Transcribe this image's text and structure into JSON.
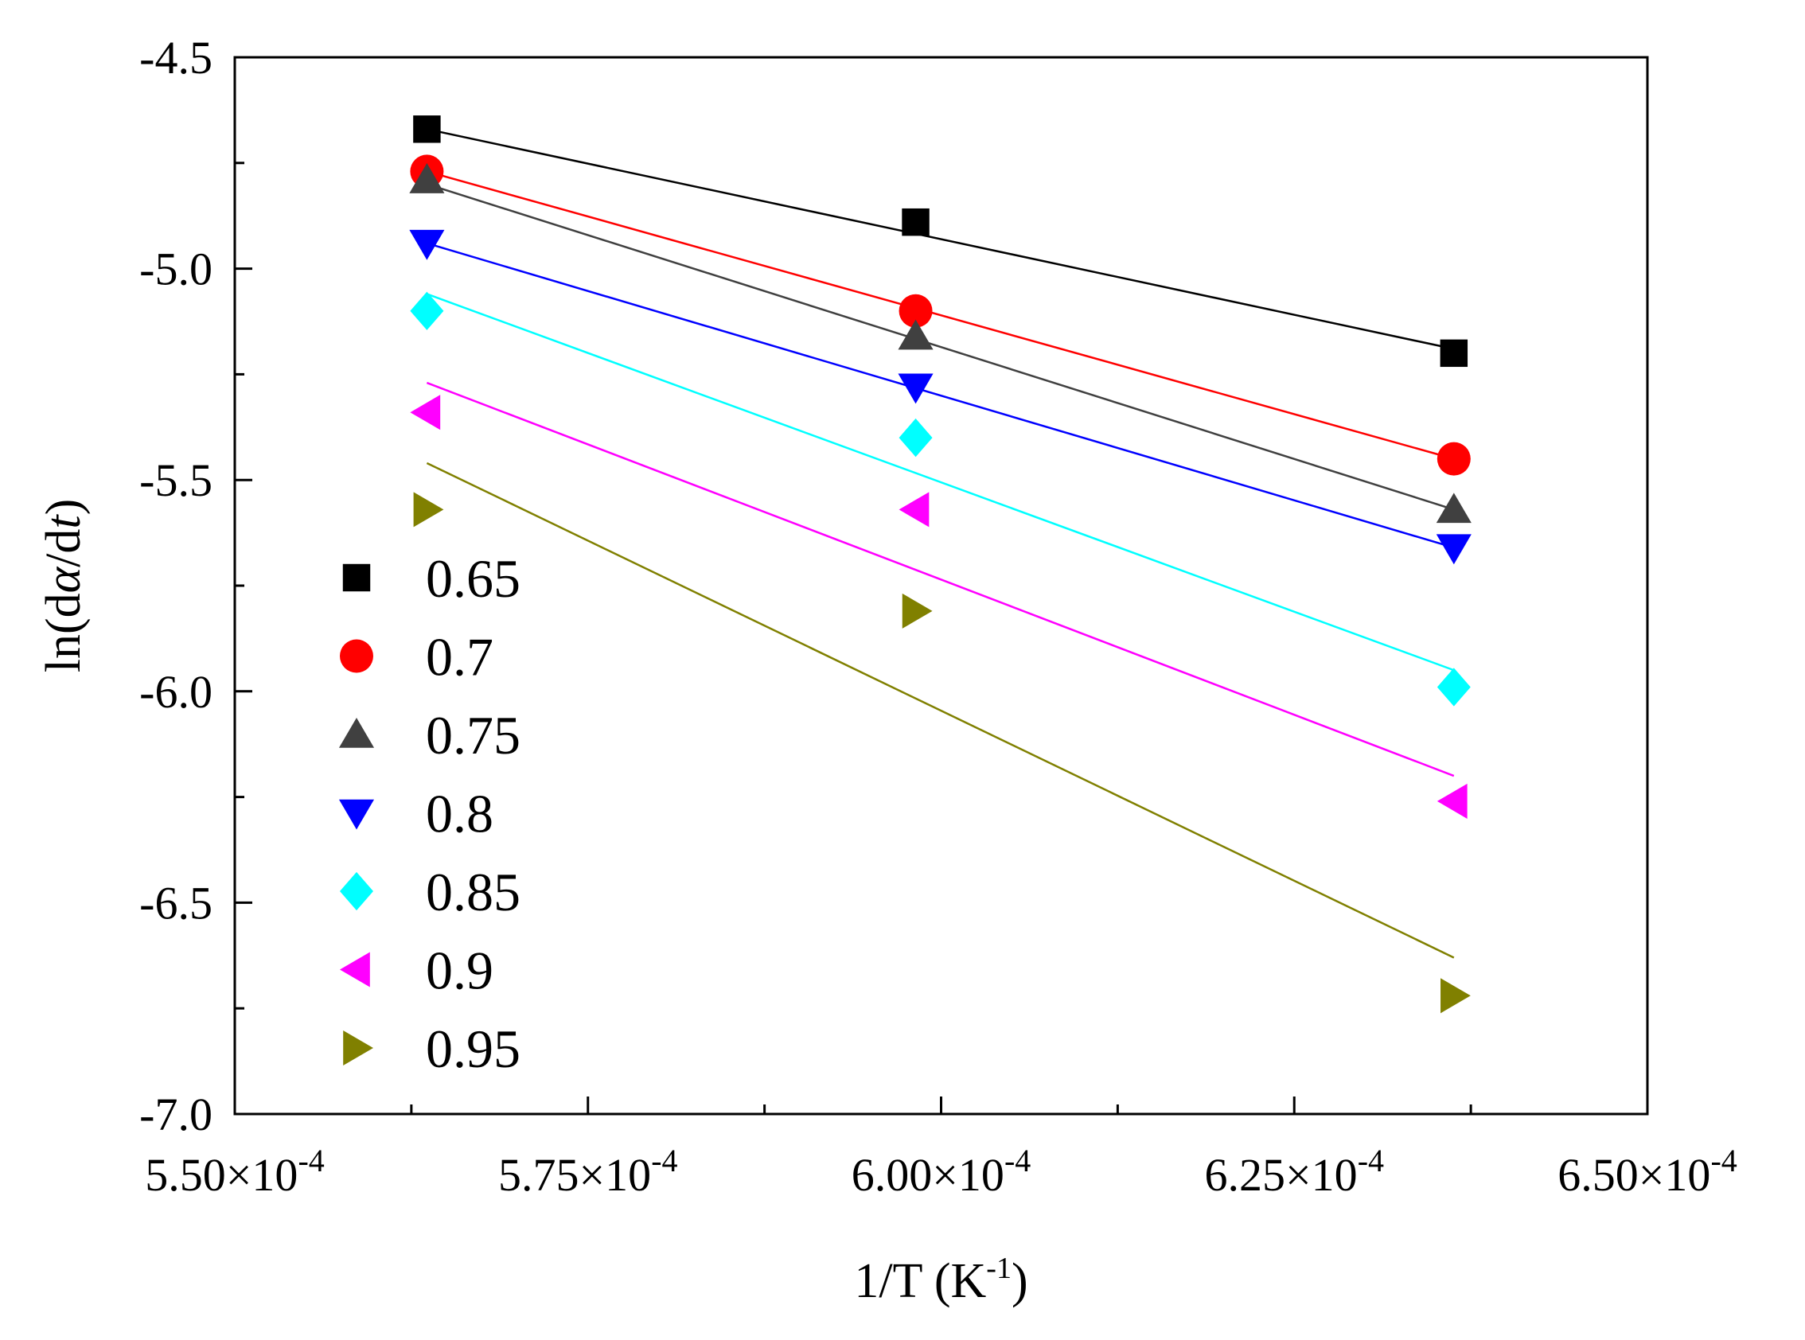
{
  "chart_data": {
    "type": "scatter",
    "title": "",
    "xlabel": "1/T (K",
    "xlabel_sup": "-1",
    "xlabel_close": ")",
    "ylabel_parts": [
      "ln(d",
      "α",
      "/d",
      "t",
      ")"
    ],
    "xlim": [
      0.00055,
      0.00065
    ],
    "ylim": [
      -7.0,
      -4.5
    ],
    "x_ticks": [
      0.00055,
      0.000575,
      0.0006,
      0.000625,
      0.00065
    ],
    "x_tick_labels": [
      {
        "mantissa": "5.50×10",
        "exp": "-4"
      },
      {
        "mantissa": "5.75×10",
        "exp": "-4"
      },
      {
        "mantissa": "6.00×10",
        "exp": "-4"
      },
      {
        "mantissa": "6.25×10",
        "exp": "-4"
      },
      {
        "mantissa": "6.50×10",
        "exp": "-4"
      }
    ],
    "y_ticks": [
      -4.5,
      -5.0,
      -5.5,
      -6.0,
      -6.5,
      -7.0
    ],
    "y_tick_labels": [
      "-4.5",
      "-5.0",
      "-5.5",
      "-6.0",
      "-6.5",
      "-7.0"
    ],
    "x": [
      0.0005636,
      0.0005982,
      0.0006363
    ],
    "legend_position": "left",
    "series": [
      {
        "name": "0.65",
        "marker": "square",
        "color": "#000000",
        "line_color": "#000000",
        "values": [
          -4.67,
          -4.89,
          -5.2
        ],
        "fit": [
          -4.67,
          -4.92,
          -5.19
        ]
      },
      {
        "name": "0.7",
        "marker": "circle",
        "color": "#ff0000",
        "line_color": "#ff0000",
        "values": [
          -4.77,
          -5.1,
          -5.45
        ],
        "fit": [
          -4.77,
          -5.1,
          -5.45
        ]
      },
      {
        "name": "0.75",
        "marker": "triangle-up",
        "color": "#404040",
        "line_color": "#404040",
        "values": [
          -4.79,
          -5.16,
          -5.57
        ],
        "fit": [
          -4.8,
          -5.17,
          -5.57
        ]
      },
      {
        "name": "0.8",
        "marker": "triangle-down",
        "color": "#0000ff",
        "line_color": "#0000ff",
        "values": [
          -4.94,
          -5.28,
          -5.66
        ],
        "fit": [
          -4.94,
          -5.29,
          -5.66
        ]
      },
      {
        "name": "0.85",
        "marker": "diamond",
        "color": "#00ffff",
        "line_color": "#00ffff",
        "values": [
          -5.1,
          -5.4,
          -5.99
        ],
        "fit": [
          -5.06,
          -5.49,
          -5.95
        ]
      },
      {
        "name": "0.9",
        "marker": "triangle-left",
        "color": "#ff00ff",
        "line_color": "#ff00ff",
        "values": [
          -5.34,
          -5.57,
          -6.26
        ],
        "fit": [
          -5.27,
          -5.71,
          -6.2
        ]
      },
      {
        "name": "0.95",
        "marker": "triangle-right",
        "color": "#808000",
        "line_color": "#808000",
        "values": [
          -5.57,
          -5.81,
          -6.72
        ],
        "fit": [
          -5.46,
          -6.01,
          -6.63
        ]
      }
    ]
  }
}
